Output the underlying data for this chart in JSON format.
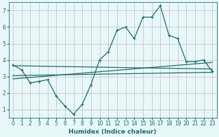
{
  "title": "",
  "xlabel": "Humidex (Indice chaleur)",
  "ylabel": "",
  "bg_color": "#e8f8f8",
  "grid_color": "#c8b8c8",
  "line_color": "#1a6b6b",
  "xlim": [
    -0.5,
    23.5
  ],
  "ylim": [
    0.5,
    7.5
  ],
  "xticks": [
    0,
    1,
    2,
    3,
    4,
    5,
    6,
    7,
    8,
    9,
    10,
    11,
    12,
    13,
    14,
    15,
    16,
    17,
    18,
    19,
    20,
    21,
    22,
    23
  ],
  "yticks": [
    1,
    2,
    3,
    4,
    5,
    6,
    7
  ],
  "main_x": [
    0,
    1,
    2,
    3,
    4,
    5,
    6,
    7,
    8,
    9,
    10,
    11,
    12,
    13,
    14,
    15,
    16,
    17,
    18,
    19,
    20,
    21,
    22,
    23
  ],
  "main_y": [
    3.7,
    3.4,
    2.6,
    2.7,
    2.8,
    1.8,
    1.2,
    0.7,
    1.3,
    2.5,
    4.0,
    4.5,
    5.8,
    6.0,
    5.3,
    6.6,
    6.6,
    7.3,
    5.5,
    5.3,
    3.9,
    3.9,
    4.0,
    3.3
  ],
  "trend1_x": [
    0,
    23
  ],
  "trend1_y": [
    3.65,
    3.45
  ],
  "trend2_x": [
    0,
    23
  ],
  "trend2_y": [
    2.85,
    3.85
  ],
  "trend3_x": [
    0,
    23
  ],
  "trend3_y": [
    3.05,
    3.25
  ]
}
